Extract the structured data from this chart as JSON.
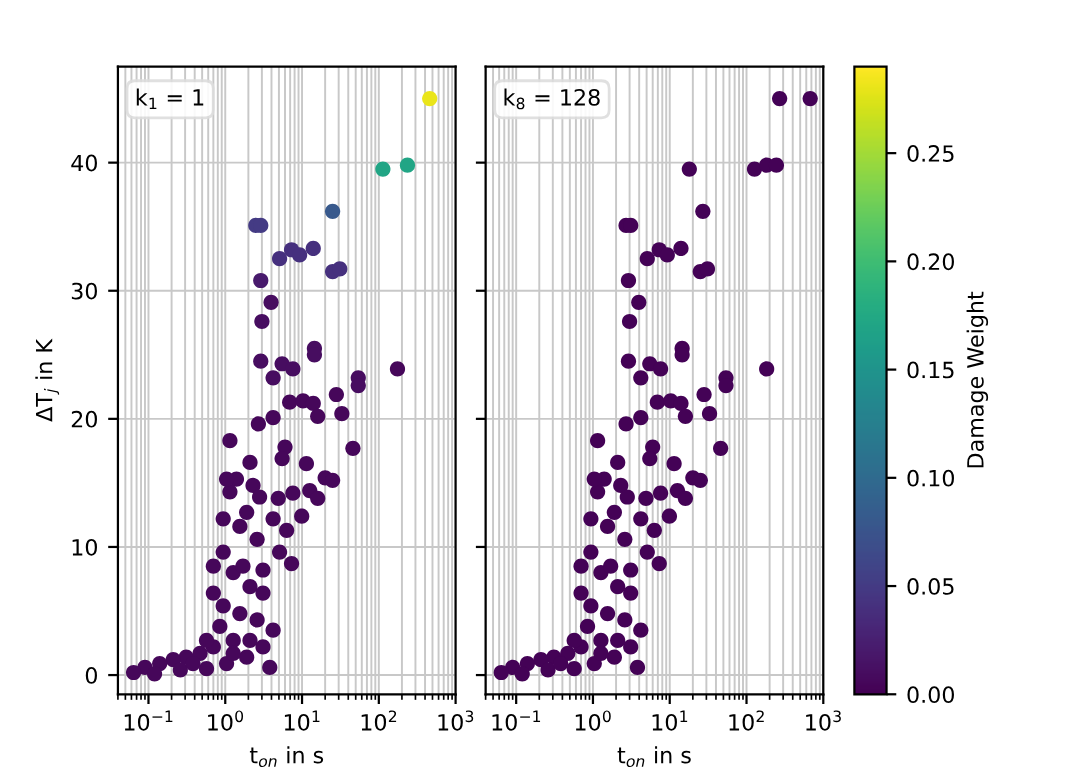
{
  "chart_data": [
    {
      "type": "scatter",
      "xlabel": "t$_{on}$ in s",
      "ylabel": "ΔT$_{j}$ in K",
      "annotations": [
        "k$_{1}$ = 1"
      ],
      "log": "x",
      "grid": true,
      "marker": "circle",
      "xlim": [
        0.04,
        1000
      ],
      "ylim": [
        -1.5,
        47.5
      ],
      "xticks": [
        {
          "value": 0.1,
          "label": "10$^{−1}$"
        },
        {
          "value": 1,
          "label": "10$^{0}$"
        },
        {
          "value": 10,
          "label": "10$^{1}$"
        },
        {
          "value": 100,
          "label": "10$^{2}$"
        },
        {
          "value": 1000,
          "label": "10$^{3}$"
        }
      ],
      "yticks": [
        0,
        10,
        20,
        30,
        40
      ],
      "clim": [
        0,
        0.29
      ],
      "clabel": "Damage Weight",
      "cticks": [
        {
          "value": 0,
          "label": "0.00"
        },
        {
          "value": 0.05,
          "label": "0.05"
        },
        {
          "value": 0.1,
          "label": "0.10"
        },
        {
          "value": 0.15,
          "label": "0.15"
        },
        {
          "value": 0.2,
          "label": "0.20"
        },
        {
          "value": 0.25,
          "label": "0.25"
        }
      ],
      "x": [
        113,
        236,
        460,
        25,
        2.5,
        2.9,
        5.1,
        7.3,
        9.3,
        14,
        25,
        31,
        2.9,
        3.95,
        3.0,
        14.5,
        14.5,
        2.9,
        5.5,
        7.6,
        4.2,
        175,
        54,
        54,
        28,
        6.9,
        10.3,
        14,
        16,
        33,
        4.2,
        2.7,
        1.15,
        46,
        6.0,
        5.5,
        2.1,
        11.4,
        20,
        25,
        1.4,
        2.3,
        7.6,
        12.6,
        16,
        4.9,
        2.8,
        1.15,
        9.9,
        4.2,
        1.55,
        6.3,
        2.6,
        5.1,
        7.3,
        0.7,
        3.1,
        1.27,
        2.1,
        0.7,
        3.1,
        0.94,
        1.55,
        2.6,
        4.2,
        0.85,
        1.27,
        0.7,
        0.47,
        0.31,
        0.21,
        0.14,
        0.09,
        0.064,
        0.12,
        0.26,
        0.57,
        1.04,
        1.9,
        3.8,
        3.1,
        2.1,
        0.57,
        1.27,
        0.38,
        0.94,
        0.94,
        1.7,
        1.9,
        1.04
      ],
      "values": [
        39.5,
        39.8,
        45,
        36.2,
        35.1,
        35.1,
        32.5,
        33.2,
        32.8,
        33.3,
        31.5,
        31.7,
        30.8,
        29.1,
        27.6,
        25.5,
        25,
        24.5,
        24.3,
        23.9,
        23.2,
        23.9,
        23.2,
        22.6,
        21.9,
        21.3,
        21.4,
        21.2,
        20.2,
        20.4,
        20.1,
        19.6,
        18.3,
        17.7,
        17.8,
        16.9,
        16.6,
        16.5,
        15.4,
        15.2,
        15.3,
        14.8,
        14.2,
        14.4,
        13.8,
        13.8,
        13.9,
        14.3,
        12.4,
        12.2,
        11.6,
        11.3,
        10.6,
        9.6,
        8.7,
        8.5,
        8.2,
        8.0,
        6.9,
        6.4,
        6.4,
        5.4,
        4.8,
        4.3,
        3.5,
        3.8,
        2.7,
        2.2,
        1.7,
        1.4,
        1.2,
        0.9,
        0.6,
        0.2,
        0.1,
        0.4,
        0.5,
        0.9,
        1.4,
        0.6,
        2.2,
        2.7,
        2.7,
        1.7,
        0.9,
        12.2,
        9.6,
        8.5,
        12.7,
        15.3
      ],
      "cvalues": [
        0.17,
        0.17,
        0.28,
        0.08,
        0.05,
        0.05,
        0.04,
        0.04,
        0.04,
        0.04,
        0.04,
        0.04,
        0.02,
        0.01,
        0.01,
        0.01,
        0.01,
        0.01,
        0.01,
        0.01,
        0.01,
        0.005,
        0.01,
        0.01,
        0.005,
        0.005,
        0.005,
        0.005,
        0.005,
        0.005,
        0.005,
        0.005,
        0.005,
        0.005,
        0.005,
        0.005,
        0.005,
        0.005,
        0.005,
        0.005,
        0.005,
        0.005,
        0.005,
        0.005,
        0.005,
        0.005,
        0.005,
        0.005,
        0.005,
        0.005,
        0.005,
        0.005,
        0.005,
        0.005,
        0.005,
        0.005,
        0.005,
        0.005,
        0.005,
        0.005,
        0.005,
        0.005,
        0.005,
        0.005,
        0.005,
        0.005,
        0.005,
        0.005,
        0.005,
        0.005,
        0.005,
        0.005,
        0.005,
        0.005,
        0.005,
        0.005,
        0.005,
        0.005,
        0.005,
        0.005,
        0.005,
        0.005,
        0.005,
        0.005,
        0.005,
        0.005,
        0.005,
        0.005,
        0.005,
        0.005
      ]
    },
    {
      "type": "scatter",
      "xlabel": "t$_{on}$ in s",
      "annotations": [
        "k$_{8}$ = 128"
      ],
      "log": "x",
      "grid": true,
      "marker": "circle",
      "tick_labels": "x",
      "xlim": [
        0.04,
        1000
      ],
      "ylim": [
        -1.5,
        47.5
      ],
      "xticks": [
        {
          "value": 0.1,
          "label": "10$^{−1}$"
        },
        {
          "value": 1,
          "label": "10$^{0}$"
        },
        {
          "value": 10,
          "label": "10$^{1}$"
        },
        {
          "value": 100,
          "label": "10$^{2}$"
        },
        {
          "value": 1000,
          "label": "10$^{3}$"
        }
      ],
      "yticks": [
        0,
        10,
        20,
        30,
        40
      ],
      "color": "#440256",
      "x": [
        270,
        675,
        18,
        127,
        183,
        245,
        27,
        2.7,
        3.1,
        5.1,
        7.3,
        9.3,
        14,
        25,
        31,
        2.9,
        3.95,
        3.0,
        14.5,
        14.5,
        2.9,
        5.5,
        7.6,
        4.2,
        183,
        54,
        54,
        28,
        6.9,
        10.3,
        14,
        16,
        33,
        4.2,
        2.7,
        1.15,
        46,
        6.0,
        5.5,
        2.1,
        11.4,
        20,
        25,
        1.4,
        2.3,
        7.6,
        12.6,
        16,
        4.9,
        2.8,
        1.15,
        9.9,
        4.2,
        1.55,
        6.3,
        2.6,
        5.1,
        7.3,
        0.7,
        3.1,
        1.27,
        2.1,
        0.7,
        3.1,
        0.94,
        1.55,
        2.6,
        4.2,
        0.85,
        1.27,
        0.7,
        0.47,
        0.31,
        0.21,
        0.14,
        0.09,
        0.064,
        0.12,
        0.26,
        0.57,
        1.04,
        1.9,
        3.8,
        3.1,
        2.1,
        0.57,
        1.27,
        0.38,
        0.94,
        0.94,
        1.7,
        1.9,
        1.04
      ],
      "values": [
        45,
        45,
        39.5,
        39.5,
        39.8,
        39.8,
        36.2,
        35.1,
        35.1,
        32.5,
        33.2,
        32.8,
        33.3,
        31.5,
        31.7,
        30.8,
        29.1,
        27.6,
        25.5,
        25,
        24.5,
        24.3,
        23.9,
        23.2,
        23.9,
        23.2,
        22.6,
        21.9,
        21.3,
        21.4,
        21.2,
        20.2,
        20.4,
        20.1,
        19.6,
        18.3,
        17.7,
        17.8,
        16.9,
        16.6,
        16.5,
        15.4,
        15.2,
        15.3,
        14.8,
        14.2,
        14.4,
        13.8,
        13.8,
        13.9,
        14.3,
        12.4,
        12.2,
        11.6,
        11.3,
        10.6,
        9.6,
        8.7,
        8.5,
        8.2,
        8.0,
        6.9,
        6.4,
        6.4,
        5.4,
        4.8,
        4.3,
        3.5,
        3.8,
        2.7,
        2.2,
        1.7,
        1.4,
        1.2,
        0.9,
        0.6,
        0.2,
        0.1,
        0.4,
        0.5,
        0.9,
        1.4,
        0.6,
        2.2,
        2.7,
        2.7,
        1.7,
        0.9,
        12.2,
        9.6,
        8.5,
        12.7,
        15.3
      ]
    }
  ]
}
